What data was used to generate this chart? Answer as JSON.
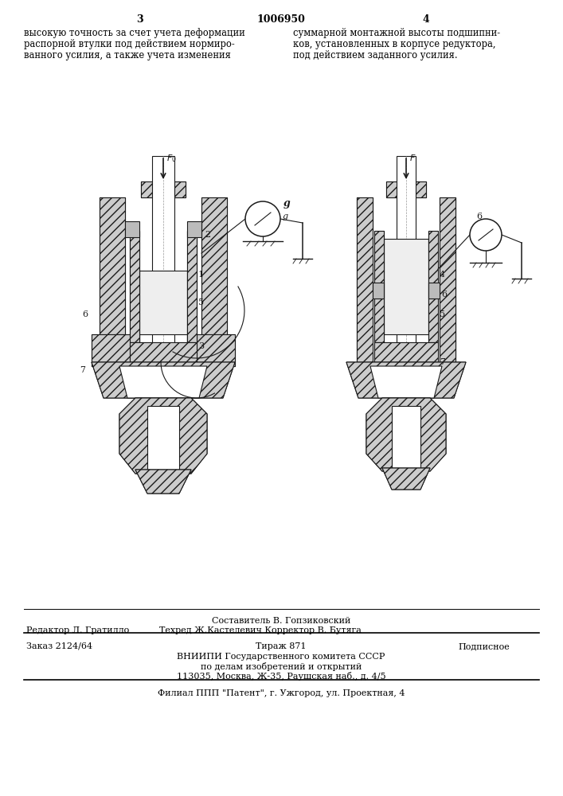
{
  "page_number_left": "3",
  "patent_number": "1006950",
  "page_number_right": "4",
  "text_col1_lines": [
    "высокую точность за счет учета деформации",
    "распорной втулки под действием нормиро-",
    "ванного усилия, а также учета изменения"
  ],
  "text_col2_lines": [
    "суммарной монтажной высоты подшипни-",
    "ков, установленных в корпусе редуктора,",
    "под действием заданного усилия."
  ],
  "footer_line1_center": "Составитель В. Гопзиковский",
  "footer_line2_left": "Редактор Л. Гратилло",
  "footer_line2_mid": "Техред Ж.Кастелевич Корректор В. Бутяга",
  "footer_order": "Заказ 2124/64",
  "footer_tirazh": "Тираж 871",
  "footer_podpis": "Подписное",
  "footer_org1": "ВНИИПИ Государственного комитета СССР",
  "footer_org2": "по делам изобретений и открытий",
  "footer_addr": "113035, Москва, Ж-35, Раушская наб., д. 4/5",
  "footer_filial": "Филиал ППП \"Патент\", г. Ужгород, ул. Проектная, 4",
  "bg_color": "#ffffff",
  "text_color": "#000000"
}
